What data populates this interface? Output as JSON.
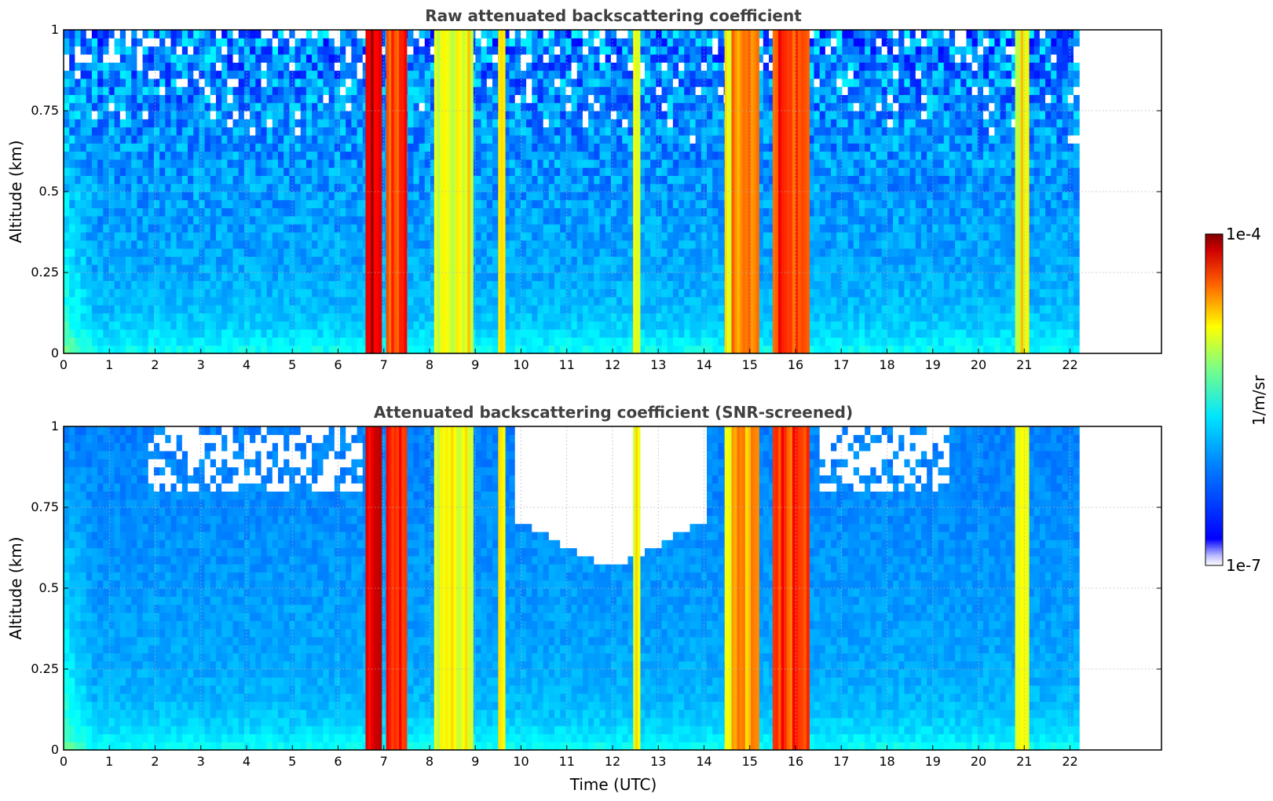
{
  "chart_data": [
    {
      "type": "heatmap",
      "title": "Raw attenuated backscattering coefficient",
      "xlabel": "",
      "ylabel": "Altitude (km)",
      "xlim": [
        0,
        24
      ],
      "ylim": [
        0,
        1
      ],
      "x_ticks": [
        "0",
        "1",
        "2",
        "3",
        "4",
        "5",
        "6",
        "7",
        "8",
        "9",
        "10",
        "11",
        "12",
        "13",
        "14",
        "15",
        "16",
        "17",
        "18",
        "19",
        "20",
        "21",
        "22"
      ],
      "y_ticks": [
        "0",
        "0.25",
        "0.5",
        "0.75",
        "1"
      ],
      "data_extent_hours": [
        0,
        22.2
      ],
      "grid": true,
      "colorscale": "jet",
      "cloud_features": [
        {
          "t_start": 6.6,
          "t_end": 6.95,
          "top_km": 1.0,
          "level": "very high"
        },
        {
          "t_start": 7.05,
          "t_end": 7.5,
          "top_km": 1.0,
          "level": "high"
        },
        {
          "t_start": 8.1,
          "t_end": 8.95,
          "top_km": 1.0,
          "level": "moderate"
        },
        {
          "t_start": 9.5,
          "t_end": 9.65,
          "top_km": 1.0,
          "level": "moderate"
        },
        {
          "t_start": 12.45,
          "t_end": 12.6,
          "top_km": 1.0,
          "level": "moderate"
        },
        {
          "t_start": 14.45,
          "t_end": 14.6,
          "top_km": 1.0,
          "level": "moderate"
        },
        {
          "t_start": 14.6,
          "t_end": 15.2,
          "top_km": 1.0,
          "level": "moderate-high"
        },
        {
          "t_start": 15.5,
          "t_end": 16.3,
          "top_km": 1.0,
          "level": "high"
        },
        {
          "t_start": 20.8,
          "t_end": 21.1,
          "top_km": 1.0,
          "level": "moderate"
        }
      ]
    },
    {
      "type": "heatmap",
      "title": "Attenuated backscattering coefficient (SNR-screened)",
      "xlabel": "Time (UTC)",
      "ylabel": "Altitude (km)",
      "xlim": [
        0,
        24
      ],
      "ylim": [
        0,
        1
      ],
      "x_ticks": [
        "0",
        "1",
        "2",
        "3",
        "4",
        "5",
        "6",
        "7",
        "8",
        "9",
        "10",
        "11",
        "12",
        "13",
        "14",
        "15",
        "16",
        "17",
        "18",
        "19",
        "20",
        "21",
        "22"
      ],
      "y_ticks": [
        "0",
        "0.25",
        "0.5",
        "0.75",
        "1"
      ],
      "data_extent_hours": [
        0,
        22.2
      ],
      "grid": true,
      "colorscale": "jet",
      "screened_region_note_km": [
        {
          "t_start": 9.8,
          "t_end": 14.0,
          "below_km": 0.55
        }
      ]
    }
  ],
  "colorbar": {
    "label": "1/m/sr",
    "max_label": "1e-4",
    "min_label": "1e-7",
    "scale": "log"
  }
}
